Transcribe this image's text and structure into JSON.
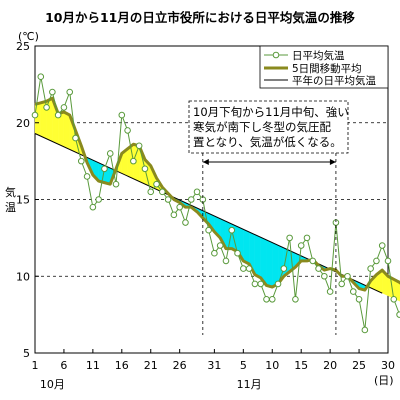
{
  "chart_data": {
    "type": "line",
    "title": "10月から11月の日立市役所における日平均気温の推移",
    "unit_label": "(℃)",
    "ylabel_chars": [
      "気",
      "温"
    ],
    "ylim": [
      5,
      25
    ],
    "yticks": [
      5,
      10,
      15,
      20,
      25
    ],
    "x_start_date": "10-01",
    "xlim": [
      1,
      61
    ],
    "xticks": [
      {
        "day": 1,
        "label": "1"
      },
      {
        "day": 6,
        "label": "6"
      },
      {
        "day": 11,
        "label": "11"
      },
      {
        "day": 16,
        "label": "16"
      },
      {
        "day": 21,
        "label": "21"
      },
      {
        "day": 26,
        "label": "26"
      },
      {
        "day": 32,
        "label": "31"
      },
      {
        "day": 37,
        "label": "5"
      },
      {
        "day": 42,
        "label": "10"
      },
      {
        "day": 47,
        "label": "15"
      },
      {
        "day": 52,
        "label": "20"
      },
      {
        "day": 57,
        "label": "25"
      },
      {
        "day": 62,
        "label": "30"
      }
    ],
    "month_labels": [
      {
        "day": 4,
        "label": "10月"
      },
      {
        "day": 38,
        "label": "11月"
      }
    ],
    "x_suffix": "(日)",
    "grid": "horizontal dashed",
    "legend_position": "top-right",
    "series": [
      {
        "name": "日平均気温",
        "color": "#5a9a3c",
        "marker": "circle",
        "values": [
          20.5,
          23.0,
          21.0,
          22.0,
          20.5,
          21.0,
          22.0,
          19.0,
          17.5,
          16.5,
          14.5,
          15.0,
          17.0,
          18.0,
          16.0,
          20.5,
          19.5,
          17.5,
          18.5,
          17.0,
          15.5,
          16.0,
          15.5,
          15.0,
          14.0,
          14.5,
          13.5,
          15.0,
          15.5,
          15.0,
          13.0,
          11.5,
          12.0,
          11.0,
          13.0,
          11.5,
          10.5,
          10.5,
          9.5,
          9.5,
          8.5,
          8.5,
          9.5,
          10.5,
          12.5,
          8.5,
          12.0,
          12.5,
          11.0,
          10.5,
          10.0,
          9.0,
          13.5,
          9.5,
          10.0,
          9.0,
          8.5,
          6.5,
          10.5,
          11.0,
          12.0,
          11.0,
          8.5,
          7.5,
          8.0,
          11.0
        ]
      },
      {
        "name": "5日間移動平均",
        "color": "#8a8a1e",
        "values": [
          21.2,
          21.3,
          21.4,
          21.6,
          20.6,
          20.7,
          20.5,
          19.5,
          18.5,
          17.4,
          16.6,
          16.2,
          16.1,
          16.0,
          17.0,
          18.0,
          18.3,
          18.6,
          18.5,
          17.6,
          17.2,
          16.4,
          15.8,
          15.4,
          15.0,
          14.8,
          14.5,
          14.5,
          14.2,
          13.8,
          13.4,
          12.9,
          12.5,
          11.8,
          11.8,
          11.6,
          11.0,
          10.8,
          10.1,
          9.9,
          9.4,
          9.3,
          9.5,
          10.0,
          10.3,
          10.6,
          11.0,
          11.0,
          11.1,
          10.7,
          10.4,
          10.5,
          10.4,
          10.0,
          10.0,
          9.6,
          9.2,
          9.1,
          9.7,
          10.1,
          10.4,
          10.0,
          9.8,
          9.6,
          9.3,
          9.0
        ]
      },
      {
        "name": "平年の日平均気温",
        "color": "#000000",
        "start": [
          1,
          19.3
        ],
        "end": [
          61,
          8.9
        ]
      }
    ],
    "fills": {
      "warm_color": "#ffff33",
      "cold_color": "#00e6f0"
    },
    "annotation": {
      "lines": [
        "10月下旬から11月中旬、強い",
        "寒気が南下し冬型の気圧配",
        "置となり、気温が低くなる。"
      ],
      "span_start_day": 30,
      "span_end_day": 53
    }
  }
}
